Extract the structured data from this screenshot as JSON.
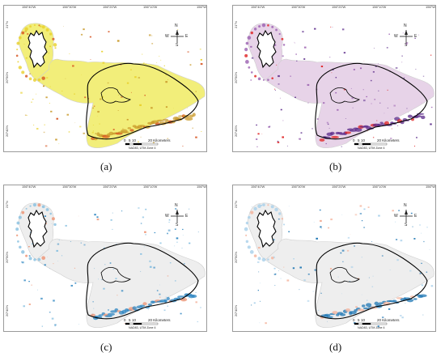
{
  "figure": {
    "panels": [
      {
        "id": "a",
        "caption": "(a)",
        "palette": {
          "fill": "#f2ee7a",
          "accent": "#e8d02a",
          "hot": "#d6521e",
          "mid": "#c99a2a",
          "outline": "#000000"
        }
      },
      {
        "id": "b",
        "caption": "(b)",
        "palette": {
          "fill": "#e7d3e8",
          "accent": "#9a5fb0",
          "hot": "#e02020",
          "mid": "#5b2a8a",
          "outline": "#000000"
        }
      },
      {
        "id": "c",
        "caption": "(c)",
        "palette": {
          "fill": "#eeeeee",
          "accent": "#86bfe0",
          "hot": "#ee9170",
          "mid": "#2e86c1",
          "outline": "#000000"
        }
      },
      {
        "id": "d",
        "caption": "(d)",
        "palette": {
          "fill": "#eeeeee",
          "accent": "#a8d0ea",
          "hot": "#f4b19a",
          "mid": "#1f77b4",
          "outline": "#000000"
        }
      }
    ],
    "longitude_labels": [
      "156°40'W",
      "156°30'W",
      "156°20'W",
      "156°10'W",
      "156°W"
    ],
    "latitude_labels": [
      "21°N",
      "20°50'N",
      "20°40'N"
    ],
    "scale_bar": {
      "ticks": [
        "0",
        "5",
        "10",
        "20 Kilometers"
      ],
      "datum": "NAD83, UTM Zone 4"
    },
    "compass": {
      "n": "N",
      "s": "S",
      "e": "E",
      "w": "W"
    }
  }
}
